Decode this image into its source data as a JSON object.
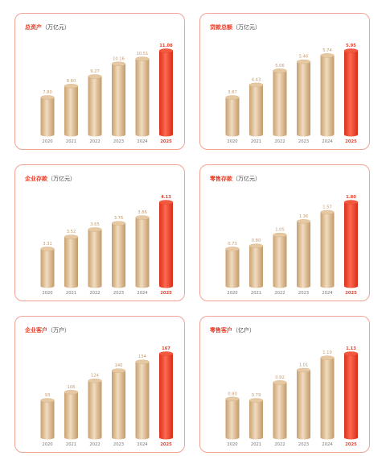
{
  "colors": {
    "accent": "#e8402b",
    "bar": "#d9b589",
    "border": "#f2a394"
  },
  "chart_data": [
    {
      "type": "bar",
      "title": "总资产",
      "unit": "（万亿元）",
      "categories": [
        "2020",
        "2021",
        "2022",
        "2023",
        "2024",
        "2025"
      ],
      "values": [
        7.8,
        8.6,
        9.27,
        10.16,
        10.51,
        11.08
      ],
      "labels": [
        "7.80",
        "8.60",
        "9.27",
        "10.16",
        "10.51",
        "11.08"
      ]
    },
    {
      "type": "bar",
      "title": "贷款总额",
      "unit": "（万亿元）",
      "categories": [
        "2020",
        "2021",
        "2022",
        "2023",
        "2024",
        "2025"
      ],
      "values": [
        3.87,
        4.43,
        5.06,
        5.46,
        5.74,
        5.95
      ],
      "labels": [
        "3.87",
        "4.43",
        "5.06",
        "5.46",
        "5.74",
        "5.95"
      ]
    },
    {
      "type": "bar",
      "title": "企业存款",
      "unit": "（万亿元）",
      "categories": [
        "2020",
        "2021",
        "2022",
        "2023",
        "2024",
        "2025"
      ],
      "values": [
        3.31,
        3.52,
        3.65,
        3.76,
        3.86,
        4.13
      ],
      "labels": [
        "3.31",
        "3.52",
        "3.65",
        "3.76",
        "3.86",
        "4.13"
      ]
    },
    {
      "type": "bar",
      "title": "零售存款",
      "unit": "（万亿元）",
      "categories": [
        "2020",
        "2021",
        "2022",
        "2023",
        "2024",
        "2025"
      ],
      "values": [
        0.73,
        0.8,
        1.05,
        1.36,
        1.57,
        1.8
      ],
      "labels": [
        "0.73",
        "0.80",
        "1.05",
        "1.36",
        "1.57",
        "1.80"
      ]
    },
    {
      "type": "bar",
      "title": "企业客户",
      "unit": "（万户）",
      "categories": [
        "2020",
        "2021",
        "2022",
        "2023",
        "2024",
        "2025"
      ],
      "values": [
        93,
        106,
        124,
        140,
        154,
        167
      ],
      "labels": [
        "93",
        "106",
        "124",
        "140",
        "154",
        "167"
      ]
    },
    {
      "type": "bar",
      "title": "零售客户",
      "unit": "（亿户）",
      "categories": [
        "2020",
        "2021",
        "2022",
        "2023",
        "2024",
        "2025"
      ],
      "values": [
        0.8,
        0.79,
        0.92,
        1.01,
        1.1,
        1.13
      ],
      "labels": [
        "0.80",
        "0.79",
        "0.92",
        "1.01",
        "1.10",
        "1.13"
      ]
    }
  ]
}
